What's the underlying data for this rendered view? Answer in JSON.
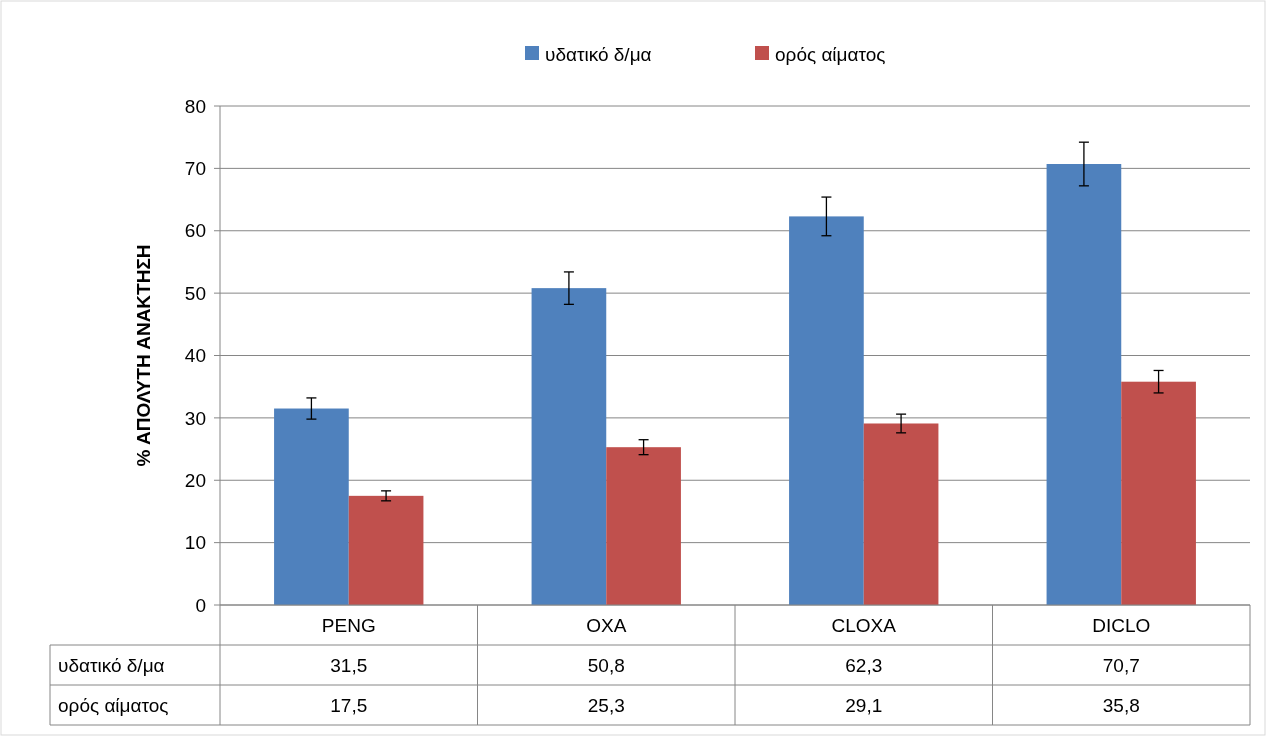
{
  "chart_data": {
    "type": "bar",
    "ylabel": "% ΑΠΟΛΥΤΗ ΑΝΑΚΤΗΣΗ",
    "categories": [
      "PENG",
      "OXA",
      "CLOXA",
      "DICLO"
    ],
    "series": [
      {
        "name": "υδατικό δ/μα",
        "color": "#4f81bd",
        "values": [
          31.5,
          50.8,
          62.3,
          70.7
        ],
        "value_labels": [
          "31,5",
          "50,8",
          "62,3",
          "70,7"
        ],
        "errors": [
          1.7,
          2.6,
          3.1,
          3.5
        ]
      },
      {
        "name": "ορός αίματος",
        "color": "#c0504d",
        "values": [
          17.5,
          25.3,
          29.1,
          35.8
        ],
        "value_labels": [
          "17,5",
          "25,3",
          "29,1",
          "35,8"
        ],
        "errors": [
          0.8,
          1.2,
          1.5,
          1.8
        ]
      }
    ],
    "ylim": [
      0,
      80
    ],
    "yticks": [
      0,
      10,
      20,
      30,
      40,
      50,
      60,
      70,
      80
    ],
    "grid": "y",
    "legend": "top"
  }
}
